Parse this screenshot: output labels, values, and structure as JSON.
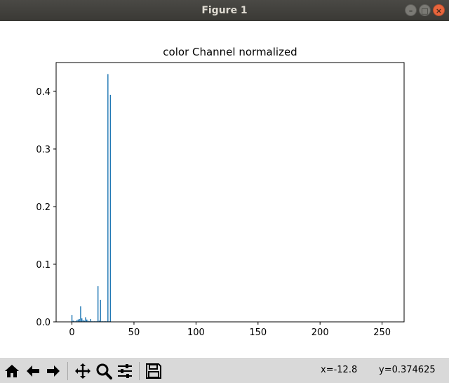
{
  "window": {
    "title": "Figure 1"
  },
  "toolbar": {
    "icons": [
      "home-icon",
      "back-arrow-icon",
      "forward-arrow-icon",
      "pan-icon",
      "zoom-icon",
      "configure-subplots-icon",
      "save-icon"
    ],
    "x_readout": "x=-12.8",
    "y_readout": "y=0.374625"
  },
  "chart_data": {
    "type": "bar",
    "title": "color Channel normalized",
    "xlabel": "",
    "ylabel": "",
    "xlim": [
      -12.75,
      267.75
    ],
    "ylim": [
      0,
      0.45
    ],
    "xticks": [
      0,
      50,
      100,
      150,
      200,
      250
    ],
    "yticks": [
      0.0,
      0.1,
      0.2,
      0.3,
      0.4
    ],
    "ytick_labels": [
      "0.0",
      "0.1",
      "0.2",
      "0.3",
      "0.4"
    ],
    "bar_width": 0.8,
    "color": "#1f77b4",
    "bins": [
      0,
      1,
      2,
      3,
      4,
      5,
      6,
      7,
      8,
      9,
      10,
      11,
      12,
      13,
      14,
      15,
      16,
      17,
      18,
      19,
      20,
      21,
      22,
      23,
      24,
      25,
      26,
      27,
      28,
      29,
      30,
      31
    ],
    "values": [
      0.012,
      0.002,
      0.001,
      0.001,
      0.003,
      0.004,
      0.005,
      0.027,
      0.006,
      0.003,
      0.002,
      0.008,
      0.004,
      0.002,
      0.001,
      0.005,
      0.001,
      0.001,
      0.001,
      0.001,
      0.001,
      0.062,
      0.002,
      0.038,
      0.001,
      0.001,
      0.001,
      0.001,
      0.001,
      0.43,
      0.001,
      0.394
    ],
    "grid": false,
    "legend": "none"
  }
}
